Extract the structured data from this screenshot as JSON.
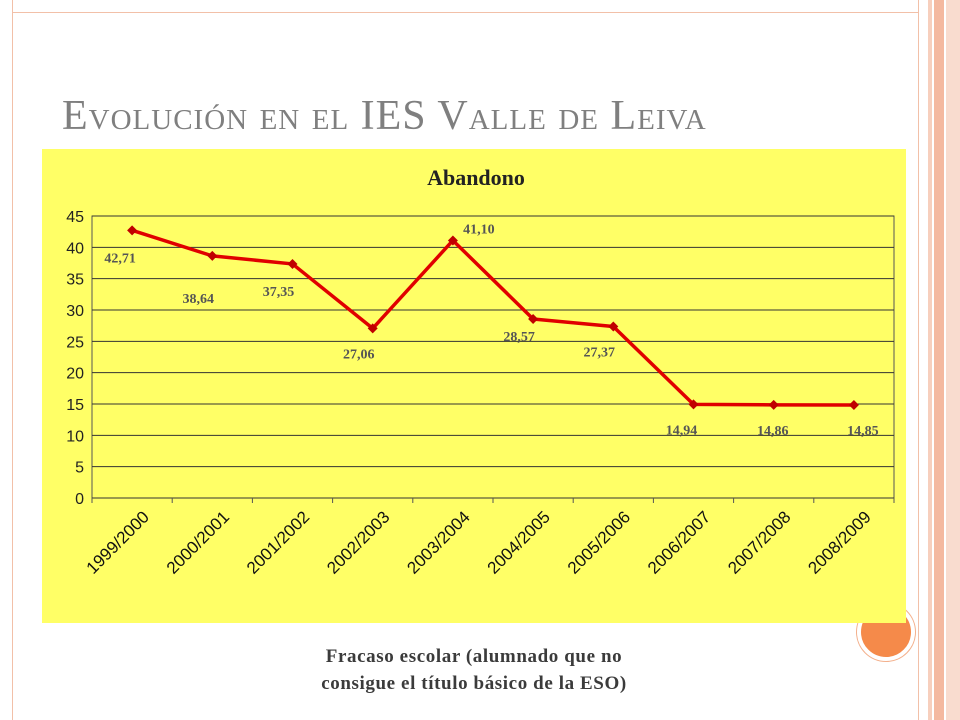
{
  "slide": {
    "title": "Evolución en el IES Valle de Leiva",
    "caption_line1": "Fracaso escolar (alumnado que no",
    "caption_line2": "consigue el título básico de la ESO)"
  },
  "chart_data": {
    "type": "line",
    "title": "Abandono",
    "xlabel": "",
    "ylabel": "",
    "categories": [
      "1999/2000",
      "2000/2001",
      "2001/2002",
      "2002/2003",
      "2003/2004",
      "2004/2005",
      "2005/2006",
      "2006/2007",
      "2007/2008",
      "2008/2009"
    ],
    "series": [
      {
        "values": [
          42.71,
          38.64,
          37.35,
          27.06,
          41.1,
          28.57,
          27.37,
          14.94,
          14.86,
          14.85
        ],
        "labels": [
          "42,71",
          "38,64",
          "37,35",
          "27,06",
          "41,10",
          "28,57",
          "27,37",
          "14,94",
          "14,86",
          "14,85"
        ],
        "color": "#e00000"
      }
    ],
    "ylim": [
      0,
      45
    ],
    "yticks": [
      0,
      5,
      10,
      15,
      20,
      25,
      30,
      35,
      40,
      45
    ],
    "grid": true,
    "legend": "none",
    "background": "#ffff66"
  }
}
